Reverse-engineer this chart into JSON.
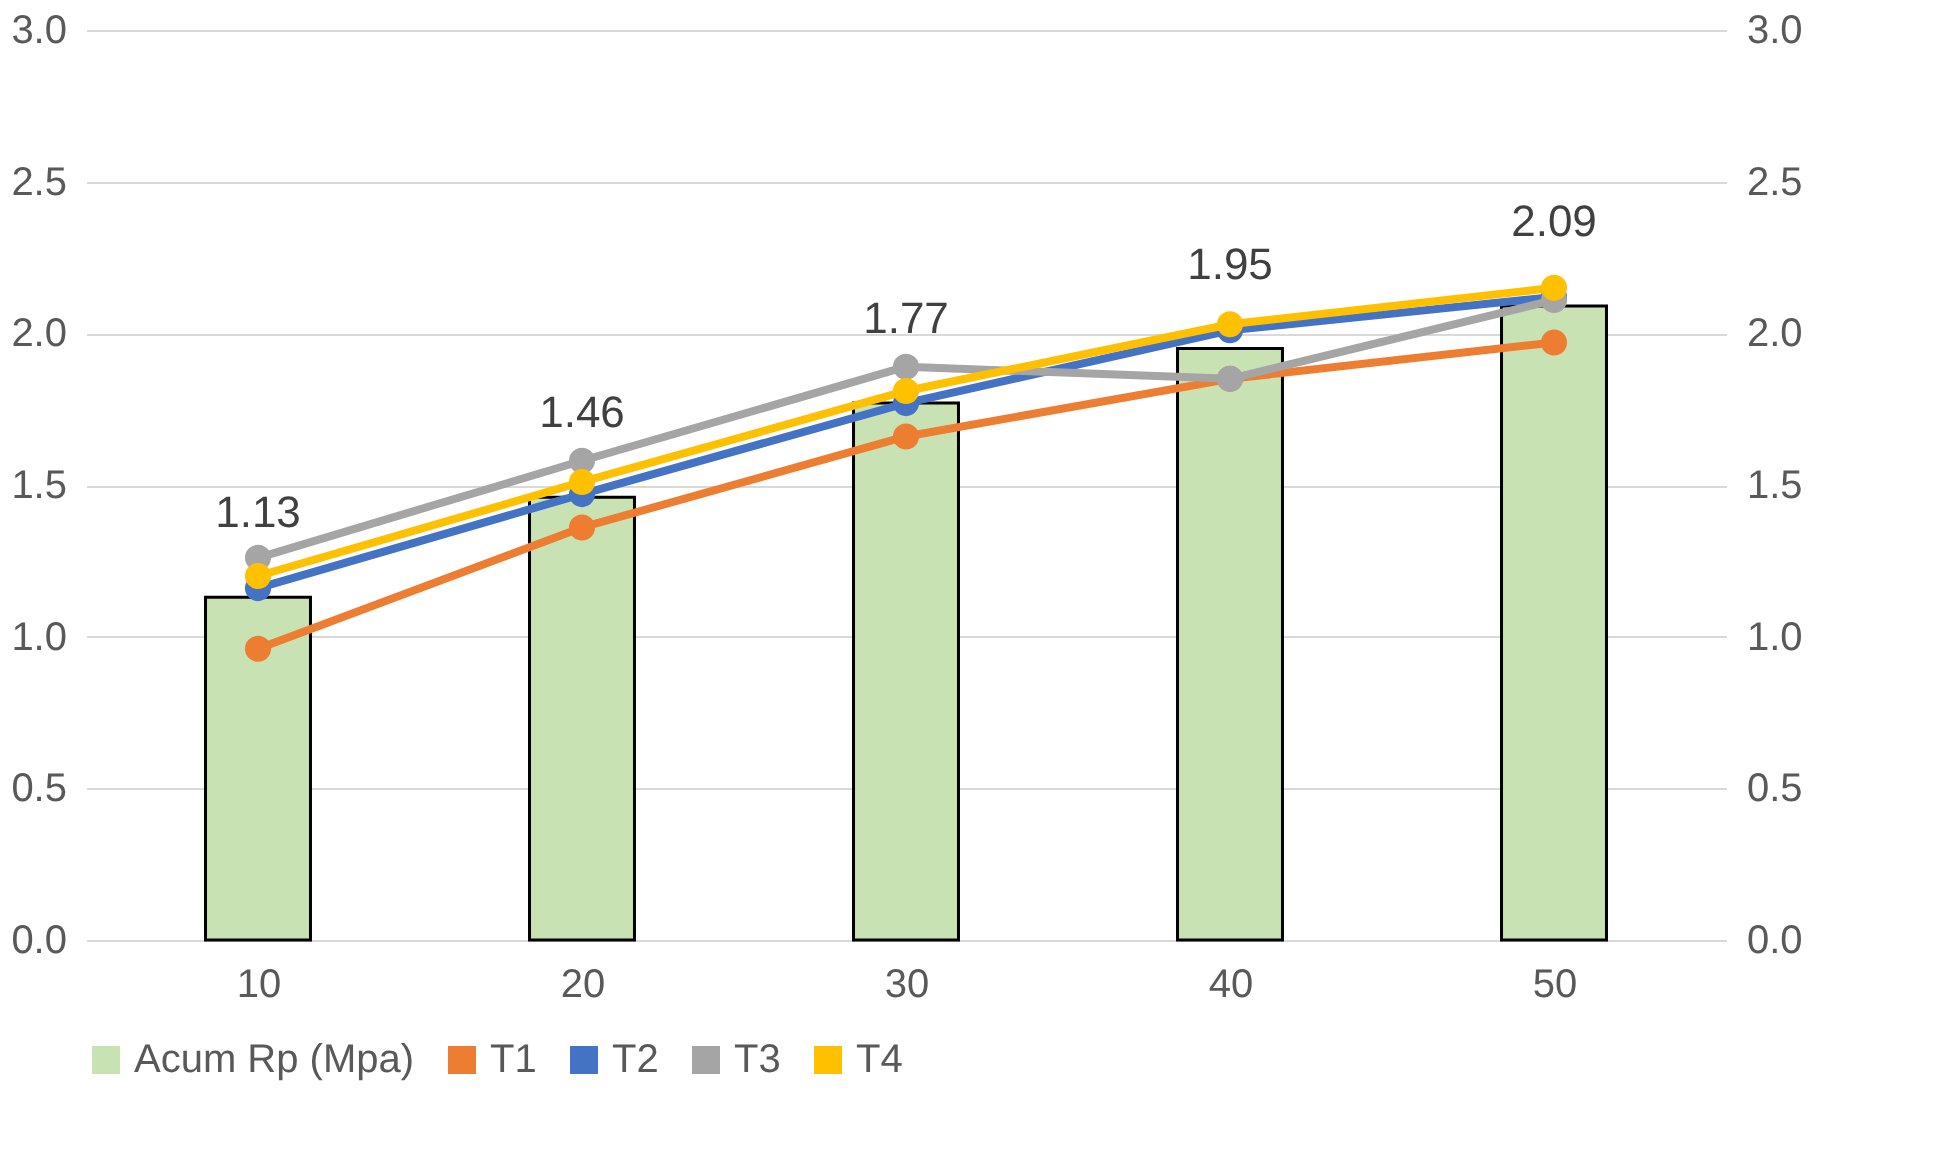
{
  "chart_data": {
    "type": "bar",
    "categories": [
      "10",
      "20",
      "30",
      "40",
      "50"
    ],
    "series": [
      {
        "name": "Acum Rp (Mpa)",
        "color": "#c9e2b3",
        "values": [
          1.13,
          1.46,
          1.77,
          1.95,
          2.09
        ],
        "value_labels": [
          "1.13",
          "1.46",
          "1.77",
          "1.95",
          "2.09"
        ]
      },
      {
        "name": "T1",
        "type": "line",
        "axis": "y2",
        "color": "#ed7d31",
        "values": [
          0.96,
          1.36,
          1.66,
          1.85,
          1.97
        ]
      },
      {
        "name": "T2",
        "type": "line",
        "axis": "y2",
        "color": "#4472c4",
        "values": [
          1.16,
          1.47,
          1.77,
          2.01,
          2.12
        ]
      },
      {
        "name": "T3",
        "type": "line",
        "axis": "y2",
        "color": "#a5a5a5",
        "values": [
          1.26,
          1.58,
          1.89,
          1.85,
          2.11
        ]
      },
      {
        "name": "T4",
        "type": "line",
        "axis": "y2",
        "color": "#ffc000",
        "values": [
          1.2,
          1.51,
          1.81,
          2.03,
          2.15
        ]
      }
    ],
    "ylim": [
      0,
      3
    ],
    "yticks": [
      {
        "value": 0,
        "label": "0.0"
      },
      0.5,
      {
        "value": 1,
        "label": "1.0"
      },
      1.5,
      {
        "value": 2,
        "label": "2.0"
      },
      2.5,
      {
        "value": 3,
        "label": "3.0"
      }
    ],
    "y2lim": [
      0,
      3
    ],
    "y2ticks": [
      {
        "value": 0,
        "label": "0.0"
      },
      0.5,
      {
        "value": 1,
        "label": "1.0"
      },
      1.5,
      {
        "value": 2,
        "label": "2.0"
      },
      2.5,
      {
        "value": 3,
        "label": "3.0"
      }
    ],
    "grid": "y",
    "legend": "bottom",
    "marker": "circle",
    "line_style": "solid"
  }
}
